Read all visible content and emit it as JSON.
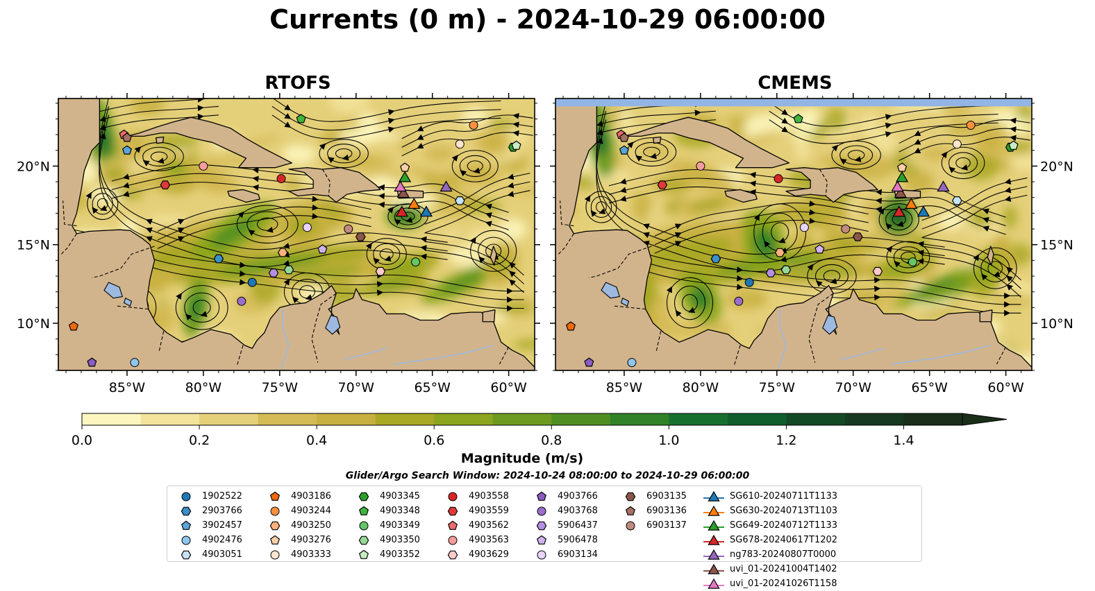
{
  "figure": {
    "title": "Currents (0 m) - 2024-10-29 06:00:00",
    "colorbar_label": "Magnitude (m/s)",
    "search_window": "Glider/Argo Search Window: 2024-10-24 08:00:00 to 2024-10-29 06:00:00"
  },
  "map_extent": {
    "lon": [
      -89.5,
      -58.3
    ],
    "lat": [
      7.0,
      24.3
    ]
  },
  "colors": {
    "land": "#d2b48c",
    "lake": "#9db9e0",
    "no_data": "#93b5e5",
    "coast": "#000000"
  },
  "panels": [
    {
      "id": "rtofs",
      "title": "RTOFS"
    },
    {
      "id": "cmems",
      "title": "CMEMS"
    }
  ],
  "axes": {
    "lon_ticks": [
      -85,
      -80,
      -75,
      -70,
      -65,
      -60
    ],
    "lon_labels": [
      "85°W",
      "80°W",
      "75°W",
      "70°W",
      "65°W",
      "60°W"
    ],
    "lat_ticks": [
      10,
      15,
      20
    ],
    "lat_labels": [
      "10°N",
      "15°N",
      "20°N"
    ]
  },
  "colorbar": {
    "min": 0.0,
    "max": 1.5,
    "extend": "max",
    "ticks": [
      0.0,
      0.2,
      0.4,
      0.6,
      0.8,
      1.0,
      1.2,
      1.4
    ],
    "tick_labels": [
      "0.0",
      "0.2",
      "0.4",
      "0.6",
      "0.8",
      "1.0",
      "1.2",
      "1.4"
    ],
    "colors": [
      "#fdf7bf",
      "#f3e49c",
      "#e5d07a",
      "#d5bb56",
      "#c8b040",
      "#a9a824",
      "#8ba51c",
      "#6c9b20",
      "#4f8f22",
      "#318226",
      "#17702e",
      "#0f5e2c",
      "#124a26",
      "#163a21",
      "#1a2e1a"
    ]
  },
  "legend": {
    "entries": [
      {
        "label": "1902522",
        "marker": "circle",
        "color": "#1f77b4"
      },
      {
        "label": "2903766",
        "marker": "hexagon",
        "color": "#3c8fc7"
      },
      {
        "label": "3902457",
        "marker": "pentagon",
        "color": "#5aa5d8"
      },
      {
        "label": "4902476",
        "marker": "circle",
        "color": "#8ec5ec"
      },
      {
        "label": "4903051",
        "marker": "hexagon",
        "color": "#c6e2f5"
      },
      {
        "label": "4903186",
        "marker": "pentagon",
        "color": "#ee6a0b"
      },
      {
        "label": "4903244",
        "marker": "circle",
        "color": "#f9913f"
      },
      {
        "label": "4903250",
        "marker": "hexagon",
        "color": "#fbb27a"
      },
      {
        "label": "4903276",
        "marker": "pentagon",
        "color": "#fdcfa6"
      },
      {
        "label": "4903333",
        "marker": "circle",
        "color": "#ffe4cc"
      },
      {
        "label": "4903345",
        "marker": "hexagon",
        "color": "#2ca02c"
      },
      {
        "label": "4903348",
        "marker": "pentagon",
        "color": "#3fb53f"
      },
      {
        "label": "4903349",
        "marker": "circle",
        "color": "#66c566"
      },
      {
        "label": "4903350",
        "marker": "hexagon",
        "color": "#97d897"
      },
      {
        "label": "4903352",
        "marker": "pentagon",
        "color": "#c8ecc2"
      },
      {
        "label": "4903558",
        "marker": "circle",
        "color": "#d62728"
      },
      {
        "label": "4903559",
        "marker": "hexagon",
        "color": "#e0393a"
      },
      {
        "label": "4903562",
        "marker": "pentagon",
        "color": "#ec6b6b"
      },
      {
        "label": "4903563",
        "marker": "circle",
        "color": "#f59c9c"
      },
      {
        "label": "4903629",
        "marker": "hexagon",
        "color": "#fccaca"
      },
      {
        "label": "4903766",
        "marker": "pentagon",
        "color": "#8a5cc0"
      },
      {
        "label": "4903768",
        "marker": "circle",
        "color": "#9a6fca"
      },
      {
        "label": "5906437",
        "marker": "hexagon",
        "color": "#b48ee0"
      },
      {
        "label": "5906478",
        "marker": "pentagon",
        "color": "#cfb3ef"
      },
      {
        "label": "6903134",
        "marker": "circle",
        "color": "#e8d3fb"
      },
      {
        "label": "6903135",
        "marker": "hexagon",
        "color": "#8c564b"
      },
      {
        "label": "6903136",
        "marker": "pentagon",
        "color": "#a47064"
      },
      {
        "label": "6903137",
        "marker": "circle",
        "color": "#c08a7e"
      },
      {
        "label": "SG610-20240711T1133",
        "marker": "triangle",
        "color": "#1f77b4"
      },
      {
        "label": "SG630-20240713T1103",
        "marker": "triangle",
        "color": "#ff7f0e"
      },
      {
        "label": "SG649-20240712T1133",
        "marker": "triangle",
        "color": "#2ca02c"
      },
      {
        "label": "SG678-20240617T1202",
        "marker": "triangle",
        "color": "#d62728"
      },
      {
        "label": "ng783-20240807T0000",
        "marker": "triangle",
        "color": "#9467bd"
      },
      {
        "label": "uvi_01-20241004T1402",
        "marker": "triangle",
        "color": "#8c564b"
      },
      {
        "label": "uvi_01-20241026T1158",
        "marker": "triangle",
        "color": "#e377c2"
      }
    ],
    "column_breaks": [
      0,
      5,
      10,
      15,
      20,
      25,
      28,
      35
    ]
  },
  "floats": [
    {
      "id": "1902522",
      "lon": -76.8,
      "lat": 12.6
    },
    {
      "id": "2903766",
      "lon": -79.0,
      "lat": 14.1
    },
    {
      "id": "3902457",
      "lon": -85.0,
      "lat": 21.0
    },
    {
      "id": "4902476",
      "lon": -84.5,
      "lat": 7.5
    },
    {
      "id": "4903051",
      "lon": -63.2,
      "lat": 17.8
    },
    {
      "id": "4903186",
      "lon": -88.5,
      "lat": 9.8
    },
    {
      "id": "4903244",
      "lon": -62.3,
      "lat": 22.6
    },
    {
      "id": "4903250",
      "lon": -74.8,
      "lat": 14.5
    },
    {
      "id": "4903276",
      "lon": -66.8,
      "lat": 19.9
    },
    {
      "id": "4903333",
      "lon": -63.2,
      "lat": 21.4
    },
    {
      "id": "4903345",
      "lon": -59.7,
      "lat": 21.2
    },
    {
      "id": "4903348",
      "lon": -73.6,
      "lat": 23.0
    },
    {
      "id": "4903349",
      "lon": -66.1,
      "lat": 13.9
    },
    {
      "id": "4903350",
      "lon": -74.4,
      "lat": 13.4
    },
    {
      "id": "4903352",
      "lon": -59.5,
      "lat": 21.3
    },
    {
      "id": "4903558",
      "lon": -74.9,
      "lat": 19.2
    },
    {
      "id": "4903559",
      "lon": -82.5,
      "lat": 18.8
    },
    {
      "id": "4903562",
      "lon": -85.2,
      "lat": 22.0
    },
    {
      "id": "4903563",
      "lon": -80.0,
      "lat": 20.0
    },
    {
      "id": "4903629",
      "lon": -68.4,
      "lat": 13.3
    },
    {
      "id": "4903766",
      "lon": -87.3,
      "lat": 7.5
    },
    {
      "id": "4903768",
      "lon": -77.5,
      "lat": 11.4
    },
    {
      "id": "5906437",
      "lon": -75.4,
      "lat": 13.2
    },
    {
      "id": "5906478",
      "lon": -72.2,
      "lat": 14.7
    },
    {
      "id": "6903134",
      "lon": -73.2,
      "lat": 16.1
    },
    {
      "id": "6903135",
      "lon": -69.7,
      "lat": 15.5
    },
    {
      "id": "6903136",
      "lon": -85.0,
      "lat": 21.8
    },
    {
      "id": "6903137",
      "lon": -70.5,
      "lat": 16.0
    }
  ],
  "gliders": [
    {
      "id": "SG610-20240711T1133",
      "lon": -65.4,
      "lat": 17.1
    },
    {
      "id": "SG630-20240713T1103",
      "lon": -66.2,
      "lat": 17.6
    },
    {
      "id": "SG649-20240712T1133",
      "lon": -66.8,
      "lat": 19.3
    },
    {
      "id": "SG678-20240617T1202",
      "lon": -67.0,
      "lat": 17.1
    },
    {
      "id": "ng783-20240807T0000",
      "lon": -64.1,
      "lat": 18.7
    },
    {
      "id": "uvi_01-20241004T1402",
      "lon": -66.9,
      "lat": 18.3
    },
    {
      "id": "uvi_01-20241026T1158",
      "lon": -67.1,
      "lat": 18.7
    }
  ]
}
